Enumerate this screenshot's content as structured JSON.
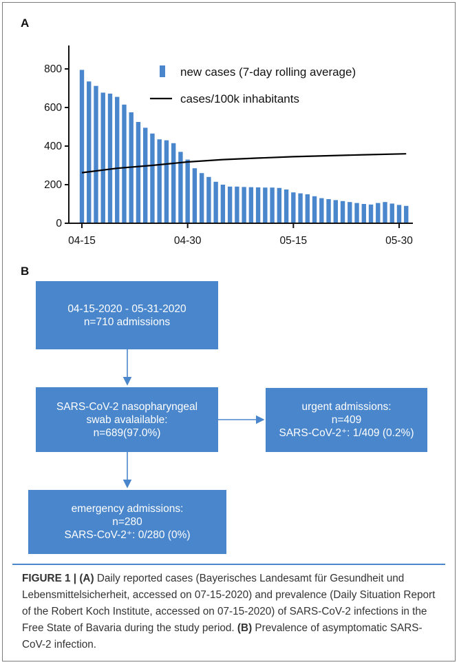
{
  "panel_a_label": "A",
  "panel_b_label": "B",
  "chart_data": {
    "type": "bar",
    "title": "",
    "xlabel": "",
    "ylabel": "",
    "ylim": [
      0,
      900
    ],
    "yticks": [
      0,
      200,
      400,
      600,
      800
    ],
    "xtick_labels": [
      "04-15",
      "04-30",
      "05-15",
      "05-30"
    ],
    "legend_position": "top-right",
    "grid": false,
    "series": [
      {
        "name": "new cases (7-day rolling average)",
        "type": "bar",
        "color": "#4a86cc",
        "x": [
          "04-15",
          "04-16",
          "04-17",
          "04-18",
          "04-19",
          "04-20",
          "04-21",
          "04-22",
          "04-23",
          "04-24",
          "04-25",
          "04-26",
          "04-27",
          "04-28",
          "04-29",
          "04-30",
          "05-01",
          "05-02",
          "05-03",
          "05-04",
          "05-05",
          "05-06",
          "05-07",
          "05-08",
          "05-09",
          "05-10",
          "05-11",
          "05-12",
          "05-13",
          "05-14",
          "05-15",
          "05-16",
          "05-17",
          "05-18",
          "05-19",
          "05-20",
          "05-21",
          "05-22",
          "05-23",
          "05-24",
          "05-25",
          "05-26",
          "05-27",
          "05-28",
          "05-29",
          "05-30",
          "05-31"
        ],
        "values": [
          795,
          735,
          712,
          677,
          672,
          655,
          615,
          575,
          525,
          495,
          465,
          435,
          430,
          415,
          370,
          330,
          285,
          260,
          240,
          215,
          200,
          190,
          190,
          188,
          187,
          186,
          185,
          185,
          183,
          175,
          160,
          155,
          150,
          140,
          130,
          125,
          120,
          115,
          110,
          105,
          100,
          97,
          105,
          110,
          102,
          95,
          90
        ]
      },
      {
        "name": "cases/100k inhabitants",
        "type": "line",
        "color": "#000000",
        "x": [
          "04-15",
          "04-20",
          "04-25",
          "04-30",
          "05-05",
          "05-10",
          "05-15",
          "05-20",
          "05-25",
          "05-31"
        ],
        "values": [
          262,
          285,
          300,
          318,
          330,
          338,
          345,
          350,
          355,
          360
        ]
      }
    ]
  },
  "flow": {
    "box1": [
      "04-15-2020 - 05-31-2020",
      "n=710 admissions"
    ],
    "box2": [
      "SARS-CoV-2 nasopharyngeal",
      "swab avalailable:",
      "n=689(97.0%)"
    ],
    "box3": [
      "urgent admissions:",
      "n=409",
      "SARS-CoV-2⁺:  1/409 (0.2%)"
    ],
    "box4": [
      "emergency admissions:",
      "n=280",
      "SARS-CoV-2⁺:  0/280 (0%)"
    ]
  },
  "caption": {
    "fig_label": "FIGURE 1 | ",
    "a_tag": "(A)",
    "a_text": " Daily reported cases (Bayerisches Landesamt für Gesundheit und Lebensmittelsicherheit, accessed on 07-15-2020) and prevalence (Daily Situation Report of the Robert Koch Institute, accessed on 07-15-2020) of SARS-CoV-2 infections in the Free State of Bavaria during the study period.",
    "b_tag": "(B)",
    "b_text": " Prevalence of asymptomatic SARS-CoV-2 infection."
  },
  "colors": {
    "bar": "#4a86cc",
    "box": "#4a86cc",
    "line": "#000000"
  }
}
